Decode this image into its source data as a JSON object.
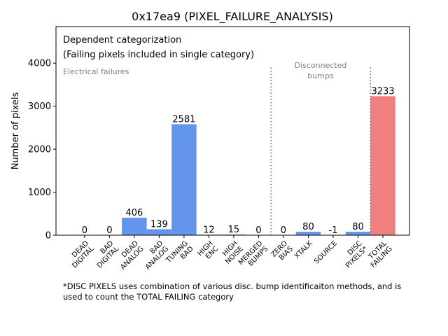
{
  "chart_data": {
    "type": "bar",
    "title": "0x17ea9 (PIXEL_FAILURE_ANALYSIS)",
    "xlabel": "",
    "ylabel": "Number of pixels",
    "ylim": [
      0,
      4850
    ],
    "yticks": [
      0,
      1000,
      2000,
      3000,
      4000
    ],
    "categories": [
      "DEAD\nDIGITAL",
      "BAD\nDIGITAL",
      "DEAD\nANALOG",
      "BAD\nANALOG",
      "TUNING\nBAD",
      "HIGH\nENC",
      "HIGH\nNOISE",
      "MERGED\nBUMPS",
      "ZERO\nBIAS",
      "XTALK",
      "SOURCE",
      "DISC\nPIXELS*",
      "TOTAL\nFAILING"
    ],
    "values": [
      0,
      0,
      406,
      139,
      2581,
      12,
      15,
      0,
      0,
      80,
      -1,
      80,
      3233
    ],
    "bar_colors": [
      "#6495ed",
      "#6495ed",
      "#6495ed",
      "#6495ed",
      "#6495ed",
      "#6495ed",
      "#6495ed",
      "#6495ed",
      "#6495ed",
      "#6495ed",
      "#6495ed",
      "#6495ed",
      "#f08080"
    ],
    "annotations": {
      "heading1": "Dependent categorization",
      "heading2": "(Failing pixels included in single category)",
      "electrical": "Electrical failures",
      "disconnected1": "Disconnected",
      "disconnected2": "bumps"
    },
    "separators": [
      7.5,
      11.5
    ],
    "footnote1": "*DISC PIXELS uses combination of various disc. bump identificaiton methods, and is",
    "footnote2": "used to count the TOTAL FAILING category"
  }
}
